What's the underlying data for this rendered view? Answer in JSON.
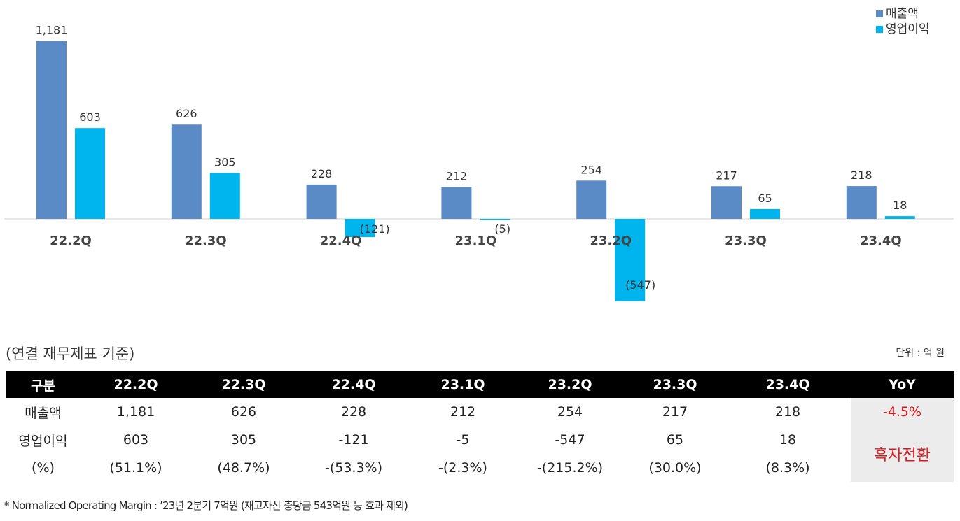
{
  "chart_data": {
    "type": "bar",
    "categories": [
      "22.2Q",
      "22.3Q",
      "22.4Q",
      "23.1Q",
      "23.2Q",
      "23.3Q",
      "23.4Q"
    ],
    "series": [
      {
        "name": "매출액",
        "values": [
          1181,
          626,
          228,
          212,
          254,
          217,
          218
        ],
        "labels": [
          "1,181",
          "626",
          "228",
          "212",
          "254",
          "217",
          "218"
        ],
        "color": "#5b8bc6"
      },
      {
        "name": "영업이익",
        "values": [
          603,
          305,
          -121,
          -5,
          -547,
          65,
          18
        ],
        "labels": [
          "603",
          "305",
          "(121)",
          "(5)",
          "(547)",
          "65",
          "18"
        ],
        "color": "#00b4ee"
      }
    ],
    "legend": "top-right",
    "grid": false
  },
  "unit_note_left": "(연결 재무제표 기준)",
  "unit_note_right": "단위 : 억 원",
  "table": {
    "headers": [
      "구분",
      "22.2Q",
      "22.3Q",
      "22.4Q",
      "23.1Q",
      "23.2Q",
      "23.3Q",
      "23.4Q",
      "YoY"
    ],
    "rows": [
      {
        "label": "매출액",
        "cells": [
          "1,181",
          "626",
          "228",
          "212",
          "254",
          "217",
          "218"
        ],
        "yoy": "-4.5%"
      },
      {
        "label": "영업이익",
        "cells": [
          "603",
          "305",
          "-121",
          "-5",
          "-547",
          "65",
          "18"
        ],
        "yoy": "흑자전환"
      },
      {
        "label": "(%)",
        "cells": [
          "(51.1%)",
          "(48.7%)",
          "-(53.3%)",
          "-(2.3%)",
          "-(215.2%)",
          "(30.0%)",
          "(8.3%)"
        ]
      }
    ]
  },
  "footnote": "* Normalized Operating Margin : ’23년 2분기 7억원 (재고자산 충당금 543억원 등 효과 제외)"
}
